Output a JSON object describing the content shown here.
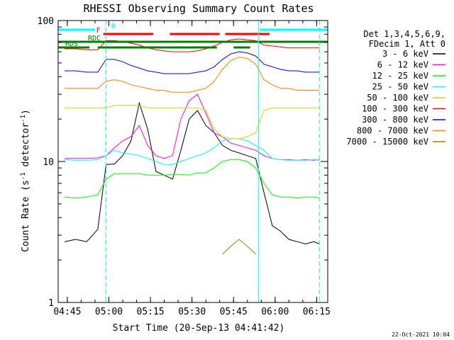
{
  "chart_data": {
    "type": "line",
    "title": "RHESSI Observing Summary Count Rates",
    "xlabel": "Start Time (20-Sep-13 04:41:42)",
    "ylabel": "Count Rate (s",
    "ylabel_sup": "-1",
    "ylabel_rest": " detector",
    "ylabel_sup2": "-1",
    "ylabel_end": ")",
    "yscale": "log",
    "ylim": [
      1,
      100
    ],
    "xlim": [
      "04:41:42",
      "06:19:00"
    ],
    "x_ticks": [
      "04:45",
      "05:00",
      "05:15",
      "05:30",
      "05:45",
      "06:00",
      "06:15"
    ],
    "y_ticks": [
      "1",
      "10",
      "100"
    ],
    "timestamp": "22-Oct-2021 10:04",
    "legend": {
      "header1": "Det 1,3,4,5,6,9,",
      "header2": "FDecim 1, Att 0",
      "entries": [
        {
          "label": "3 - 6 keV",
          "color": "#000000"
        },
        {
          "label": "6 - 12 keV",
          "color": "#ff00ff"
        },
        {
          "label": "12 - 25 keV",
          "color": "#00ff00"
        },
        {
          "label": "25 - 50 keV",
          "color": "#00ffff"
        },
        {
          "label": "50 - 100 keV",
          "color": "#d4d400"
        },
        {
          "label": "100 - 300 keV",
          "color": "#ff0000"
        },
        {
          "label": "300 - 800 keV",
          "color": "#0000ff"
        },
        {
          "label": "800 - 7000 keV",
          "color": "#ff8000"
        },
        {
          "label": "7000 - 15000 keV",
          "color": "#8c8c00"
        }
      ]
    },
    "flags": [
      {
        "label": "N",
        "color": "#00ffff",
        "segments": [
          [
            "04:41:42",
            "04:55:00"
          ],
          [
            "05:54:30",
            "06:19:00"
          ]
        ]
      },
      {
        "label": "F",
        "color": "#ff0000",
        "segments": [
          [
            "04:58:00",
            "05:16:00"
          ],
          [
            "05:22:00",
            "05:40:00"
          ],
          [
            "05:42:00",
            "05:58:00"
          ]
        ]
      },
      {
        "label": "RDC",
        "color": "#008000",
        "segments": [
          [
            "04:41:42",
            "06:19:00"
          ]
        ]
      },
      {
        "label": "RDS",
        "color": "#008000",
        "segments": [
          [
            "04:41:42",
            "04:53:00"
          ],
          [
            "04:56:00",
            "05:39:00"
          ],
          [
            "05:45:00",
            "05:51:00"
          ]
        ]
      }
    ],
    "vlines": [
      {
        "time": "04:59:00",
        "color": "#00ffff",
        "style": "dashed"
      },
      {
        "time": "05:54:00",
        "color": "#00ffff",
        "style": "solid"
      },
      {
        "time": "06:16:00",
        "color": "#00ffff",
        "style": "dashed"
      }
    ],
    "series": [
      {
        "name": "3 - 6 keV",
        "color": "#000000",
        "x": [
          "04:44",
          "04:48",
          "04:52",
          "04:56",
          "04:59",
          "05:02",
          "05:05",
          "05:08",
          "05:11",
          "05:14",
          "05:17",
          "05:20",
          "05:23",
          "05:26",
          "05:29",
          "05:32",
          "05:35",
          "05:38",
          "05:41",
          "05:44",
          "05:47",
          "05:50",
          "05:53",
          "05:56",
          "05:59",
          "06:02",
          "06:05",
          "06:08",
          "06:11",
          "06:14",
          "06:16"
        ],
        "values": [
          2.7,
          2.8,
          2.7,
          3.3,
          9.5,
          9.6,
          11,
          14,
          26,
          17,
          8.5,
          8,
          7.5,
          12,
          20,
          23,
          18,
          16,
          13,
          12,
          11.5,
          11,
          10.5,
          6,
          3.5,
          3.2,
          2.8,
          2.7,
          2.6,
          2.7,
          2.6
        ]
      },
      {
        "name": "6 - 12 keV",
        "color": "#ff00ff",
        "x": [
          "04:44",
          "04:48",
          "04:52",
          "04:56",
          "04:59",
          "05:02",
          "05:05",
          "05:08",
          "05:11",
          "05:14",
          "05:17",
          "05:20",
          "05:23",
          "05:26",
          "05:29",
          "05:32",
          "05:35",
          "05:38",
          "05:41",
          "05:44",
          "05:47",
          "05:50",
          "05:53",
          "05:56",
          "05:59",
          "06:02",
          "06:05",
          "06:08",
          "06:11",
          "06:14",
          "06:16"
        ],
        "values": [
          10.5,
          10.5,
          10.5,
          10.6,
          11,
          12.5,
          14,
          15,
          18,
          13,
          11,
          10.5,
          11,
          20,
          27,
          30,
          22,
          16,
          15,
          13.5,
          13,
          12.5,
          12,
          11,
          10.5,
          10.3,
          10.3,
          10.2,
          10.3,
          10.2,
          10.3
        ]
      },
      {
        "name": "12 - 25 keV",
        "color": "#00ff00",
        "x": [
          "04:44",
          "04:48",
          "04:52",
          "04:56",
          "04:59",
          "05:02",
          "05:05",
          "05:08",
          "05:11",
          "05:14",
          "05:17",
          "05:20",
          "05:23",
          "05:26",
          "05:29",
          "05:32",
          "05:35",
          "05:38",
          "05:41",
          "05:44",
          "05:47",
          "05:50",
          "05:53",
          "05:56",
          "05:59",
          "06:02",
          "06:05",
          "06:08",
          "06:11",
          "06:14",
          "06:16"
        ],
        "values": [
          5.6,
          5.5,
          5.6,
          5.8,
          7.5,
          8.2,
          8.2,
          8.2,
          8.2,
          8,
          8,
          8,
          8.1,
          8.1,
          8,
          8.3,
          8.3,
          9,
          10,
          10.3,
          10.3,
          10,
          9,
          7,
          5.8,
          5.6,
          5.6,
          5.5,
          5.6,
          5.6,
          5.5
        ]
      },
      {
        "name": "25 - 50 keV",
        "color": "#00ffff",
        "x": [
          "04:44",
          "04:48",
          "04:52",
          "04:56",
          "04:59",
          "05:02",
          "05:05",
          "05:08",
          "05:11",
          "05:14",
          "05:17",
          "05:20",
          "05:23",
          "05:26",
          "05:29",
          "05:32",
          "05:35",
          "05:38",
          "05:41",
          "05:44",
          "05:47",
          "05:50",
          "05:53",
          "05:56",
          "05:59",
          "06:02",
          "06:05",
          "06:08",
          "06:11",
          "06:14",
          "06:16"
        ],
        "values": [
          10.3,
          10.2,
          10.2,
          10.3,
          11,
          12,
          11.5,
          11.3,
          11,
          10.5,
          10,
          9.5,
          9.5,
          10,
          10.5,
          11,
          11.5,
          12.5,
          14,
          14.5,
          14.5,
          14,
          13,
          12,
          10.5,
          10.3,
          10.2,
          10.2,
          10.2,
          10.3,
          10.2
        ]
      },
      {
        "name": "50 - 100 keV",
        "color": "#d4d400",
        "x": [
          "04:44",
          "04:48",
          "04:52",
          "04:56",
          "04:59",
          "05:02",
          "05:05",
          "05:08",
          "05:11",
          "05:14",
          "05:17",
          "05:20",
          "05:23",
          "05:26",
          "05:29",
          "05:32",
          "05:35",
          "05:38",
          "05:41",
          "05:44",
          "05:47",
          "05:50",
          "05:53",
          "05:56",
          "05:59",
          "06:02",
          "06:05",
          "06:08",
          "06:11",
          "06:14",
          "06:16"
        ],
        "values": [
          24,
          24,
          24,
          24,
          24,
          25,
          25,
          25,
          25,
          24,
          24,
          24,
          24,
          24,
          24,
          24,
          23,
          17,
          15,
          14.5,
          14.5,
          15,
          16,
          23,
          24,
          24,
          24,
          24,
          24,
          24,
          24
        ]
      },
      {
        "name": "100 - 300 keV",
        "color": "#ff0000",
        "x": [
          "04:44",
          "04:48",
          "04:52",
          "04:56",
          "04:59",
          "05:02",
          "05:05",
          "05:08",
          "05:11",
          "05:14",
          "05:17",
          "05:20",
          "05:23",
          "05:26",
          "05:29",
          "05:32",
          "05:35",
          "05:38",
          "05:41",
          "05:44",
          "05:47",
          "05:50",
          "05:53",
          "05:56",
          "05:59",
          "06:02",
          "06:05",
          "06:08",
          "06:11",
          "06:14",
          "06:16"
        ],
        "values": [
          63,
          63,
          62,
          62,
          72,
          72,
          71,
          69,
          67,
          64,
          62,
          61,
          60,
          60,
          60,
          61,
          63,
          66,
          70,
          73,
          74,
          73,
          72,
          67,
          66,
          65,
          64,
          64,
          64,
          64,
          64
        ]
      },
      {
        "name": "300 - 800 keV",
        "color": "#0000ff",
        "x": [
          "04:44",
          "04:48",
          "04:52",
          "04:56",
          "04:59",
          "05:02",
          "05:05",
          "05:08",
          "05:11",
          "05:14",
          "05:17",
          "05:20",
          "05:23",
          "05:26",
          "05:29",
          "05:32",
          "05:35",
          "05:38",
          "05:41",
          "05:44",
          "05:47",
          "05:50",
          "05:53",
          "05:56",
          "05:59",
          "06:02",
          "06:05",
          "06:08",
          "06:11",
          "06:14",
          "06:16"
        ],
        "values": [
          44,
          44,
          43,
          43,
          53,
          53,
          51,
          48,
          46,
          44,
          43,
          42,
          42,
          42,
          42,
          43,
          44,
          47,
          53,
          58,
          60,
          59,
          56,
          49,
          47,
          45,
          44,
          44,
          43,
          43,
          43
        ]
      },
      {
        "name": "800 - 7000 keV",
        "color": "#ff8000",
        "x": [
          "04:44",
          "04:48",
          "04:52",
          "04:56",
          "04:59",
          "05:02",
          "05:05",
          "05:08",
          "05:11",
          "05:14",
          "05:17",
          "05:20",
          "05:23",
          "05:26",
          "05:29",
          "05:32",
          "05:35",
          "05:38",
          "05:41",
          "05:44",
          "05:47",
          "05:50",
          "05:53",
          "05:56",
          "05:59",
          "06:02",
          "06:05",
          "06:08",
          "06:11",
          "06:14",
          "06:16"
        ],
        "values": [
          33,
          33,
          33,
          33,
          37,
          38,
          37,
          35,
          34,
          33,
          32,
          32,
          31,
          31,
          31,
          32,
          33,
          37,
          45,
          52,
          55,
          54,
          49,
          38,
          35,
          33,
          33,
          32,
          32,
          32,
          32
        ]
      },
      {
        "name": "7000 - 15000 keV",
        "color": "#8c8c00",
        "x": [
          "05:41",
          "05:43",
          "05:45",
          "05:47",
          "05:49",
          "05:51",
          "05:53"
        ],
        "values": [
          2.2,
          2.4,
          2.6,
          2.8,
          2.6,
          2.4,
          2.2
        ]
      }
    ]
  }
}
